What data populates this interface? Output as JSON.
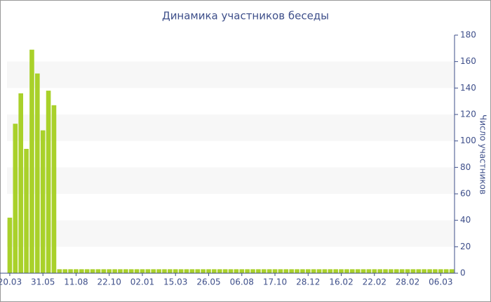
{
  "chart_data": {
    "type": "bar",
    "title": "Динамика участников беседы",
    "y_label": "Число участников",
    "categories": [
      "20.03",
      null,
      null,
      null,
      null,
      null,
      "31.05",
      null,
      null,
      null,
      null,
      null,
      "11.08",
      null,
      null,
      null,
      null,
      null,
      "22.10",
      null,
      null,
      null,
      null,
      null,
      "02.01",
      null,
      null,
      null,
      null,
      null,
      "15.03",
      null,
      null,
      null,
      null,
      null,
      "26.05",
      null,
      null,
      null,
      null,
      null,
      "06.08",
      null,
      null,
      null,
      null,
      null,
      "17.10",
      null,
      null,
      null,
      null,
      null,
      "28.12",
      null,
      null,
      null,
      null,
      null,
      "16.02",
      null,
      null,
      null,
      null,
      null,
      "22.02",
      null,
      null,
      null,
      null,
      null,
      "28.02",
      null,
      null,
      null,
      null,
      null,
      "06.03",
      null,
      null
    ],
    "values": [
      42,
      113,
      136,
      94,
      169,
      151,
      108,
      138,
      127,
      3,
      3,
      3,
      3,
      3,
      3,
      3,
      3,
      3,
      3,
      3,
      3,
      3,
      3,
      3,
      3,
      3,
      3,
      3,
      3,
      3,
      3,
      3,
      3,
      3,
      3,
      3,
      3,
      3,
      3,
      3,
      3,
      3,
      3,
      3,
      3,
      3,
      3,
      3,
      3,
      3,
      3,
      3,
      3,
      3,
      3,
      3,
      3,
      3,
      3,
      3,
      3,
      3,
      3,
      3,
      3,
      3,
      3,
      3,
      3,
      3,
      3,
      3,
      3,
      3,
      3,
      3,
      3,
      3,
      3,
      3,
      3
    ],
    "color": "#a9d12a",
    "ylim": [
      0,
      180
    ],
    "yticks": [
      0,
      20,
      40,
      60,
      80,
      100,
      120,
      140,
      160,
      180
    ],
    "grid": true,
    "y_axis_side": "right"
  }
}
